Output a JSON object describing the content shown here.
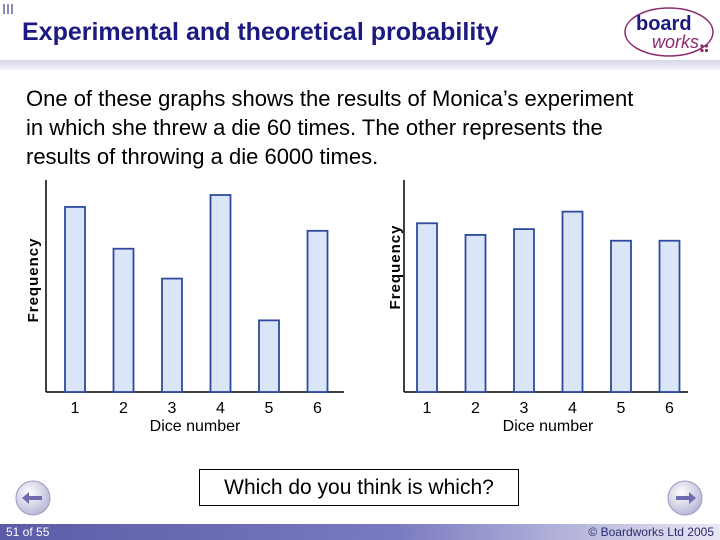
{
  "slide": {
    "title": "Experimental and theoretical probability",
    "intro_lines": [
      "One of these graphs shows the results of Monica’s experiment",
      "in which she threw a die 60 times. The other represents the",
      "results of throwing a die 6000 times."
    ],
    "question": "Which do you think is which?",
    "slide_counter": "51 of 55",
    "copyright": "© Boardworks Ltd 2005",
    "logo_text_top": "board",
    "logo_text_bottom": "works"
  },
  "colors": {
    "title": "#1a1a80",
    "bar_fill": "#dbe5f8",
    "bar_stroke": "#2f4a9e",
    "footer_band": "#5b5ba8"
  },
  "chart_data": [
    {
      "type": "bar",
      "categories": [
        "1",
        "2",
        "3",
        "4",
        "5",
        "6"
      ],
      "values": [
        15.5,
        12,
        9.5,
        16.5,
        6,
        13.5
      ],
      "xlabel": "Dice number",
      "ylabel": "Frequency",
      "ylim": [
        0,
        16.5
      ],
      "grid": false,
      "legend": "none"
    },
    {
      "type": "bar",
      "categories": [
        "1",
        "2",
        "3",
        "4",
        "5",
        "6"
      ],
      "values": [
        14.5,
        13.5,
        14,
        15.5,
        13,
        13
      ],
      "xlabel": "Dice number",
      "ylabel": "Frequency",
      "ylim": [
        0,
        16.5
      ],
      "grid": false,
      "legend": "none"
    }
  ]
}
